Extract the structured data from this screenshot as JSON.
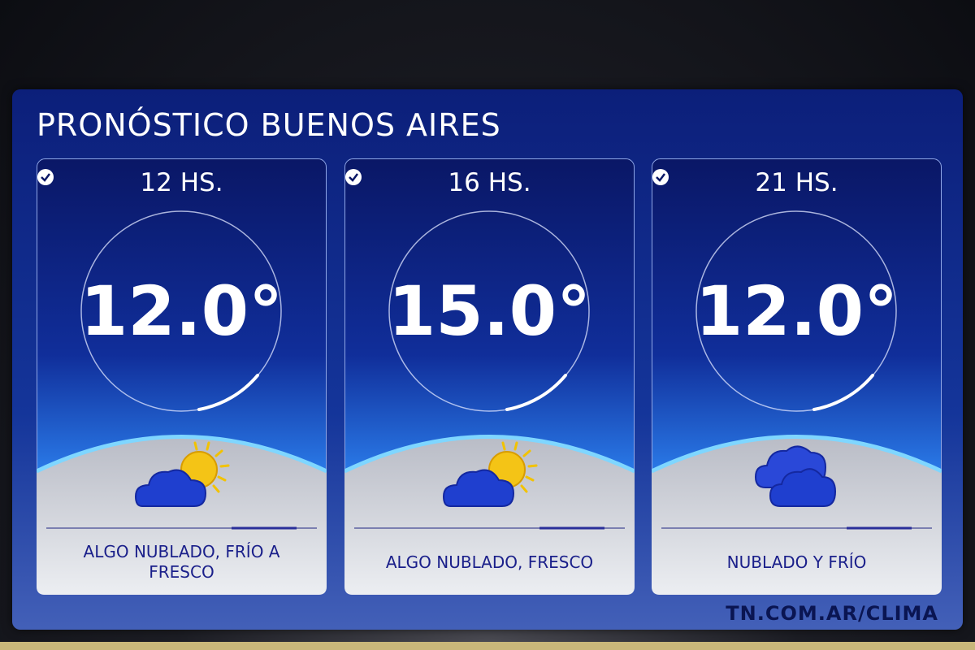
{
  "header": {
    "title": "PRONÓSTICO BUENOS AIRES"
  },
  "cards": [
    {
      "time": "12 HS.",
      "temperature": "12.0°",
      "description": "ALGO NUBLADO, FRÍO A FRESCO"
    },
    {
      "time": "16 HS.",
      "temperature": "15.0°",
      "description": "ALGO NUBLADO, FRESCO"
    },
    {
      "time": "21 HS.",
      "temperature": "12.0°",
      "description": "NUBLADO Y FRÍO"
    }
  ],
  "footer": {
    "url": "TN.COM.AR/CLIMA"
  }
}
